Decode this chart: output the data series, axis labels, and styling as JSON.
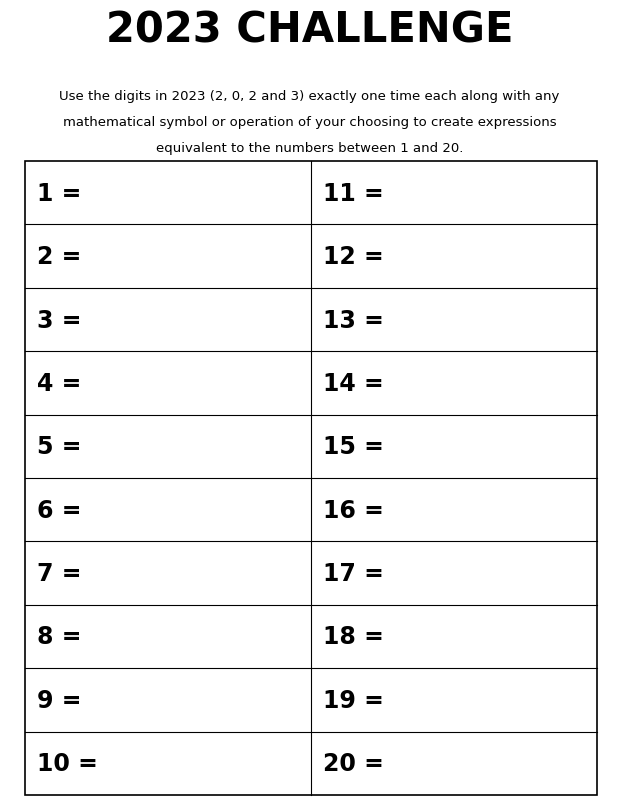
{
  "title": "2023 CHALLENGE",
  "subtitle_line1": "Use the digits in 2023 (2, 0, 2 and 3) exactly one time each along with any",
  "subtitle_line2": "mathematical symbol or operation of your choosing to create expressions",
  "subtitle_line3": "equivalent to the numbers between 1 and 20.",
  "left_labels": [
    "1 =",
    "2 =",
    "3 =",
    "4 =",
    "5 =",
    "6 =",
    "7 =",
    "8 =",
    "9 =",
    "10 ="
  ],
  "right_labels": [
    "11 =",
    "12 =",
    "13 =",
    "14 =",
    "15 =",
    "16 =",
    "17 =",
    "18 =",
    "19 =",
    "20 ="
  ],
  "num_rows": 10,
  "background_color": "#ffffff",
  "text_color": "#000000",
  "grid_color": "#000000",
  "title_fontsize": 30,
  "subtitle_fontsize": 9.5,
  "cell_fontsize": 17,
  "fig_width": 6.19,
  "fig_height": 8.04
}
